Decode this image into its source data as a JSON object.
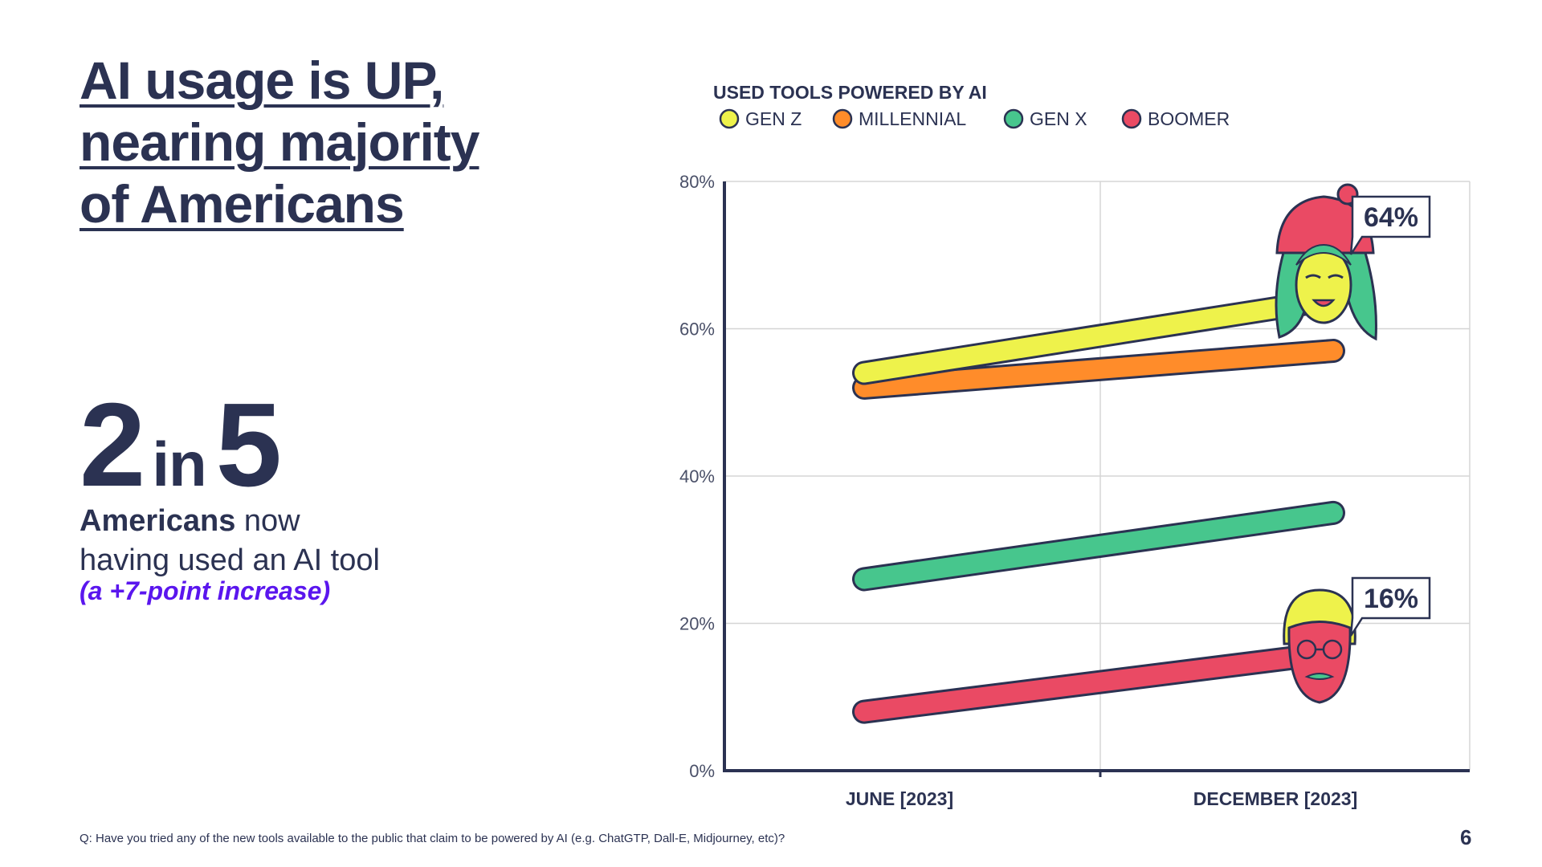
{
  "slide": {
    "title": "AI usage is UP, nearing majority of Americans",
    "stat": {
      "number1": "2",
      "connector": "in",
      "number2": "5",
      "desc_bold": "Americans",
      "desc_rest": " now",
      "desc_line2": "having used an AI tool",
      "note": "(a +7-point increase)"
    },
    "footnote": "Q:  Have you tried any of the new tools available to the public that claim to be powered by AI (e.g. ChatGTP, Dall-E, Midjourney, etc)?",
    "page_number": "6"
  },
  "chart_data": {
    "type": "line",
    "title": "USED TOOLS POWERED BY AI",
    "categories": [
      "JUNE [2023]",
      "DECEMBER [2023]"
    ],
    "ylim": [
      0,
      80
    ],
    "yticks": [
      0,
      20,
      40,
      60,
      80
    ],
    "ytick_labels": [
      "0%",
      "20%",
      "40%",
      "60%",
      "80%"
    ],
    "grid": true,
    "legend_position": "top",
    "series": [
      {
        "name": "GEN Z",
        "color": "#eef24b",
        "values": [
          54,
          64
        ],
        "end_label": "64%",
        "avatar": "gen-z-face-icon"
      },
      {
        "name": "MILLENNIAL",
        "color": "#ff8c2a",
        "values": [
          52,
          57
        ]
      },
      {
        "name": "GEN X",
        "color": "#47c68d",
        "values": [
          26,
          35
        ]
      },
      {
        "name": "BOOMER",
        "color": "#ea4a64",
        "values": [
          8,
          16
        ],
        "end_label": "16%",
        "avatar": "boomer-face-icon"
      }
    ],
    "colors": {
      "axis": "#2b3252",
      "grid": "#d5d5d5",
      "outline": "#2b3252"
    }
  }
}
